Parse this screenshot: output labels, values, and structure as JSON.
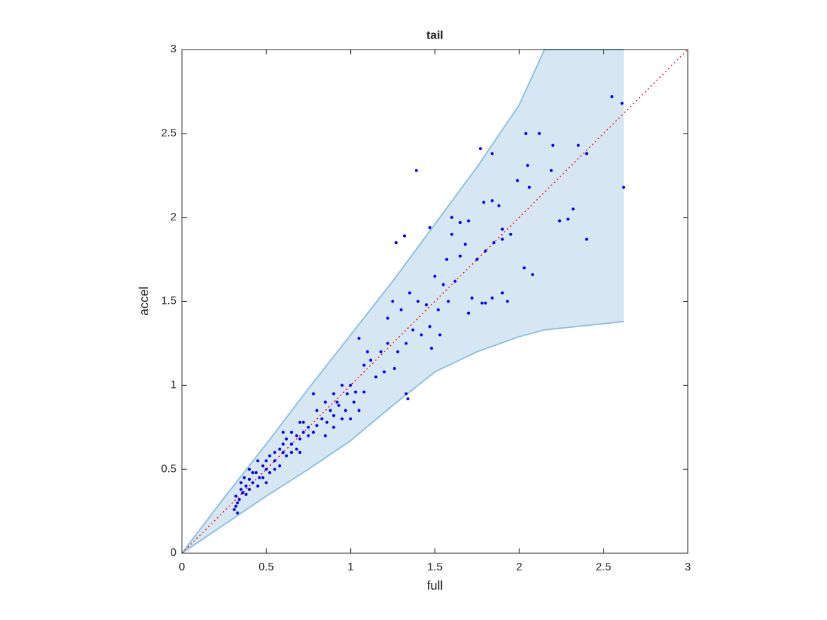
{
  "chart_data": {
    "type": "scatter",
    "title": "tail",
    "x_label": "full",
    "y_label": "accel",
    "xlim": [
      0,
      3
    ],
    "ylim": [
      0,
      3
    ],
    "xticks": [
      0,
      0.5,
      1,
      1.5,
      2,
      2.5,
      3
    ],
    "yticks": [
      0,
      0.5,
      1,
      1.5,
      2,
      2.5,
      3
    ],
    "grid": false,
    "band": {
      "color": "#d6e7f3",
      "edge_color": "#8bbfe0",
      "x": [
        0,
        0.25,
        0.5,
        0.75,
        1,
        1.25,
        1.5,
        1.75,
        2,
        2.15,
        2.62
      ],
      "upper": [
        0,
        0.33,
        0.65,
        0.98,
        1.3,
        1.62,
        1.96,
        2.3,
        2.67,
        3,
        3
      ],
      "lower": [
        0,
        0.17,
        0.34,
        0.5,
        0.67,
        0.88,
        1.08,
        1.2,
        1.29,
        1.33,
        1.38
      ]
    },
    "reference": {
      "color": "#ff0000",
      "x": [
        0,
        3
      ],
      "y": [
        0,
        3
      ]
    },
    "points": {
      "color": "#0000ff",
      "x": [
        2.55,
        2.61,
        2.62,
        2.4,
        2.35,
        2.2,
        2.04,
        2.12,
        2.05,
        2.06,
        1.99,
        2.19,
        2.24,
        2.29,
        2.32,
        2.4,
        2.03,
        2.08,
        1.77,
        1.84,
        1.79,
        1.84,
        1.88,
        1.39,
        1.27,
        1.32,
        1.47,
        1.6,
        1.65,
        1.7,
        1.6,
        1.9,
        1.95,
        1.85,
        1.9,
        1.68,
        1.8,
        1.75,
        1.65,
        1.57,
        1.5,
        1.55,
        1.62,
        1.72,
        1.78,
        1.8,
        1.84,
        1.9,
        1.93,
        1.7,
        1.58,
        1.52,
        1.45,
        1.4,
        1.35,
        1.3,
        1.25,
        1.22,
        1.37,
        1.42,
        1.47,
        1.53,
        1.48,
        1.33,
        1.28,
        1.22,
        1.18,
        1.12,
        1.08,
        1.15,
        1.2,
        1.26,
        1.34,
        1.33,
        1.05,
        1.1,
        1.0,
        0.95,
        0.98,
        1.03,
        1.08,
        0.9,
        0.85,
        0.88,
        0.92,
        0.97,
        1.02,
        0.78,
        0.8,
        0.83,
        0.86,
        0.9,
        0.95,
        0.75,
        0.72,
        0.7,
        0.68,
        0.65,
        0.62,
        0.6,
        0.58,
        0.55,
        0.52,
        0.5,
        0.48,
        0.46,
        0.44,
        0.42,
        0.4,
        0.38,
        0.36,
        0.35,
        0.34,
        0.33,
        0.32,
        0.32,
        0.31,
        0.33,
        0.35,
        0.38,
        0.4,
        0.42,
        0.45,
        0.48,
        0.5,
        0.52,
        0.55,
        0.58,
        0.6,
        0.62,
        0.65,
        0.68,
        0.7,
        0.72,
        0.75,
        0.78,
        0.8,
        0.6,
        0.55,
        0.5,
        0.45,
        0.4,
        0.37,
        0.7,
        0.65,
        0.85,
        0.9,
        1.0,
        1.05,
        0.93
      ],
      "y": [
        2.72,
        2.68,
        2.18,
        2.38,
        2.43,
        2.43,
        2.5,
        2.5,
        2.31,
        2.18,
        2.22,
        2.28,
        1.98,
        1.99,
        2.05,
        1.87,
        1.7,
        1.66,
        2.41,
        2.38,
        2.09,
        2.1,
        2.07,
        2.28,
        1.85,
        1.89,
        1.94,
        2.0,
        1.97,
        1.98,
        1.9,
        1.93,
        1.9,
        1.85,
        1.87,
        1.84,
        1.8,
        1.75,
        1.77,
        1.75,
        1.65,
        1.6,
        1.62,
        1.52,
        1.49,
        1.49,
        1.52,
        1.55,
        1.5,
        1.43,
        1.5,
        1.45,
        1.48,
        1.5,
        1.55,
        1.45,
        1.5,
        1.4,
        1.33,
        1.3,
        1.35,
        1.3,
        1.22,
        1.25,
        1.2,
        1.25,
        1.2,
        1.15,
        1.12,
        1.05,
        1.08,
        1.1,
        0.92,
        0.95,
        1.28,
        1.2,
        1.0,
        1.0,
        0.95,
        0.96,
        0.96,
        0.95,
        0.9,
        0.85,
        0.9,
        0.85,
        0.9,
        0.95,
        0.85,
        0.8,
        0.78,
        0.75,
        0.8,
        0.75,
        0.72,
        0.78,
        0.7,
        0.65,
        0.68,
        0.6,
        0.62,
        0.55,
        0.58,
        0.5,
        0.52,
        0.45,
        0.48,
        0.42,
        0.44,
        0.4,
        0.36,
        0.38,
        0.32,
        0.3,
        0.28,
        0.34,
        0.26,
        0.24,
        0.42,
        0.35,
        0.38,
        0.48,
        0.4,
        0.45,
        0.55,
        0.48,
        0.6,
        0.52,
        0.65,
        0.58,
        0.72,
        0.62,
        0.68,
        0.78,
        0.7,
        0.72,
        0.76,
        0.72,
        0.5,
        0.42,
        0.55,
        0.5,
        0.45,
        0.6,
        0.6,
        0.7,
        0.82,
        0.8,
        0.85,
        0.88
      ]
    }
  }
}
